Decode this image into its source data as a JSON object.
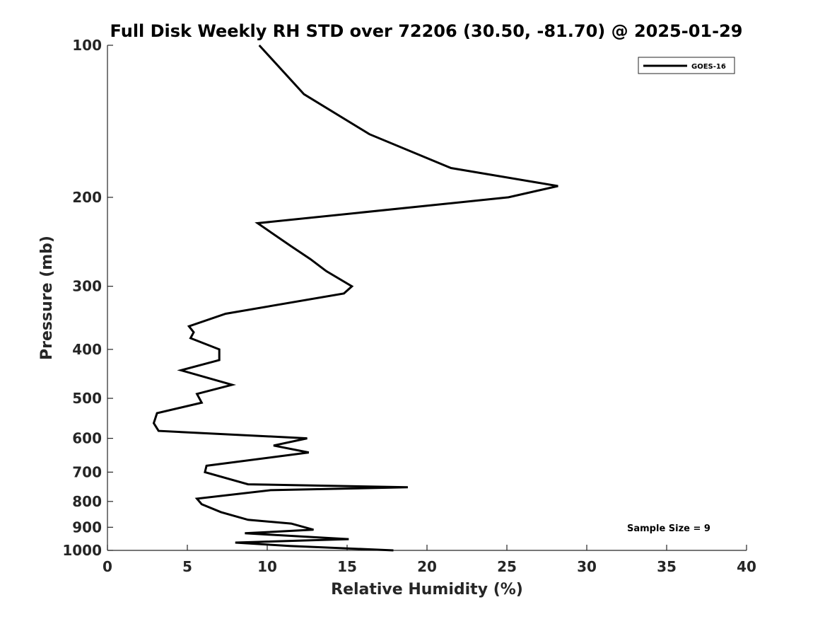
{
  "chart_data": {
    "type": "line",
    "title": "Full Disk Weekly RH STD over 72206 (30.50, -81.70) @ 2025-01-29",
    "xlabel": "Relative Humidity (%)",
    "ylabel": "Pressure (mb)",
    "xlim": [
      0,
      40
    ],
    "ylim": [
      1000,
      100
    ],
    "yscale": "log",
    "y_inverted": true,
    "x_ticks": [
      0,
      5,
      10,
      15,
      20,
      25,
      30,
      35,
      40
    ],
    "x_tick_labels": [
      "0",
      "5",
      "10",
      "15",
      "20",
      "25",
      "30",
      "35",
      "40"
    ],
    "y_ticks": [
      100,
      200,
      300,
      400,
      500,
      600,
      700,
      800,
      900,
      1000
    ],
    "y_tick_labels": [
      "100",
      "200",
      "300",
      "400",
      "500",
      "600",
      "700",
      "800",
      "900",
      "1000"
    ],
    "grid": false,
    "legend_position": "top-right",
    "series": [
      {
        "name": "GOES-16",
        "color": "#000000",
        "x": [
          9.5,
          12.3,
          16.4,
          21.5,
          28.2,
          25.1,
          9.4,
          11.5,
          12.7,
          13.7,
          15.3,
          14.8,
          7.4,
          5.1,
          5.4,
          5.2,
          7.0,
          7.0,
          4.6,
          7.8,
          5.6,
          5.9,
          3.1,
          2.9,
          3.2,
          12.5,
          10.4,
          12.6,
          6.2,
          6.1,
          8.8,
          18.8,
          10.2,
          5.6,
          5.9,
          7.1,
          8.8,
          11.5,
          12.9,
          8.6,
          15.1,
          8.0,
          11.4,
          17.9
        ],
        "y": [
          100,
          125,
          150,
          175,
          190,
          200,
          225,
          250,
          265,
          280,
          300,
          310,
          340,
          360,
          370,
          380,
          400,
          420,
          440,
          470,
          490,
          510,
          535,
          560,
          580,
          600,
          620,
          640,
          680,
          700,
          740,
          750,
          760,
          790,
          810,
          840,
          870,
          885,
          910,
          925,
          950,
          965,
          980,
          1000
        ]
      }
    ],
    "annotations": [
      "Sample Size = 9"
    ]
  }
}
